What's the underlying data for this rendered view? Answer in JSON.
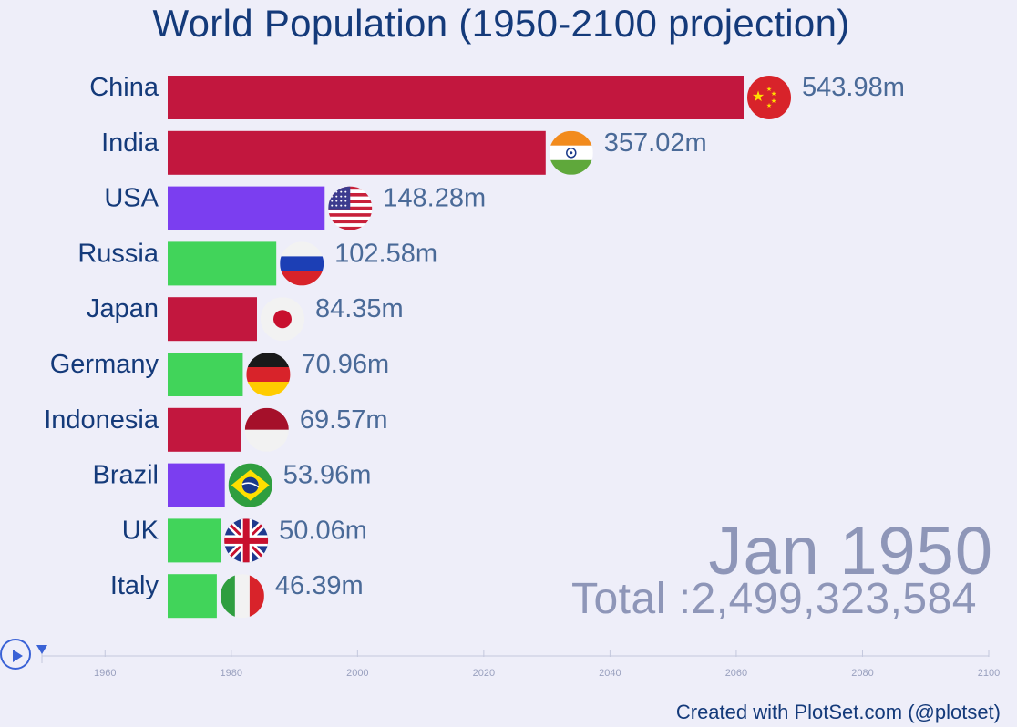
{
  "chart_data": {
    "type": "bar",
    "title": "World Population (1950-2100 projection)",
    "date": "Jan 1950",
    "total": "Total :2,499,323,584",
    "credit": "Created with PlotSet.com (@plotset)",
    "value_unit": "m",
    "xlim": [
      0,
      600
    ],
    "bars": [
      {
        "name": "China",
        "value": 543.98,
        "label": "543.98m",
        "color": "#c2173e",
        "flag": "china-flag"
      },
      {
        "name": "India",
        "value": 357.02,
        "label": "357.02m",
        "color": "#c2173e",
        "flag": "india-flag"
      },
      {
        "name": "USA",
        "value": 148.28,
        "label": "148.28m",
        "color": "#7b3ef0",
        "flag": "usa-flag"
      },
      {
        "name": "Russia",
        "value": 102.58,
        "label": "102.58m",
        "color": "#41d45a",
        "flag": "russia-flag"
      },
      {
        "name": "Japan",
        "value": 84.35,
        "label": "84.35m",
        "color": "#c2173e",
        "flag": "japan-flag"
      },
      {
        "name": "Germany",
        "value": 70.96,
        "label": "70.96m",
        "color": "#41d45a",
        "flag": "germany-flag"
      },
      {
        "name": "Indonesia",
        "value": 69.57,
        "label": "69.57m",
        "color": "#c2173e",
        "flag": "indonesia-flag"
      },
      {
        "name": "Brazil",
        "value": 53.96,
        "label": "53.96m",
        "color": "#7b3ef0",
        "flag": "brazil-flag"
      },
      {
        "name": "UK",
        "value": 50.06,
        "label": "50.06m",
        "color": "#41d45a",
        "flag": "uk-flag"
      },
      {
        "name": "Italy",
        "value": 46.39,
        "label": "46.39m",
        "color": "#41d45a",
        "flag": "italy-flag"
      }
    ],
    "timeline": {
      "ticks": [
        "1960",
        "1980",
        "2000",
        "2020",
        "2040",
        "2060",
        "2080",
        "2100"
      ],
      "range": [
        1950,
        2100
      ],
      "current": 1950
    }
  },
  "controls": {
    "play_icon": "play-icon"
  }
}
